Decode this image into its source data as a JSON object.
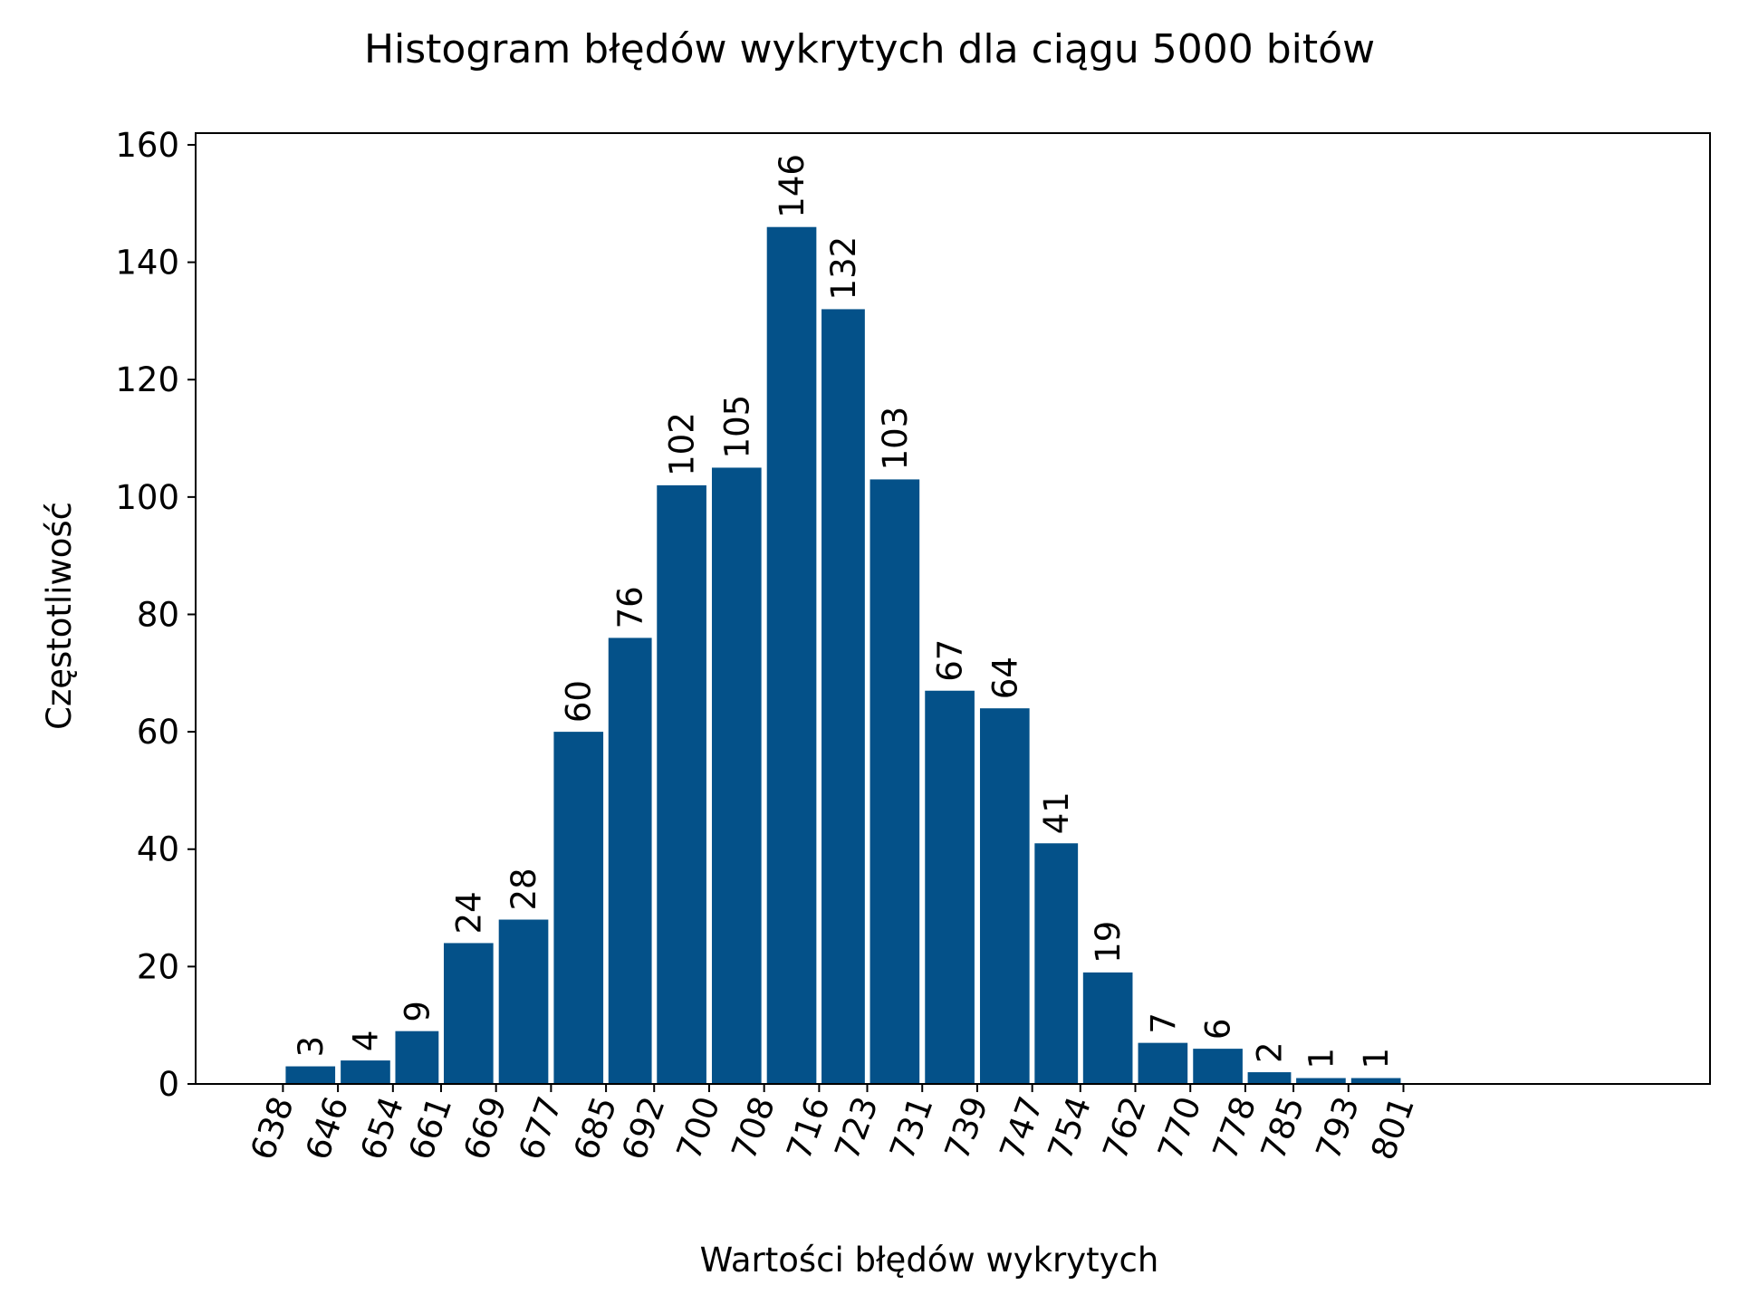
{
  "chart_data": {
    "type": "bar",
    "title": "Histogram błędów wykrytych dla ciągu 5000 bitów",
    "xlabel": "Wartości błędów wykrytych",
    "ylabel": "Częstotliwość",
    "bin_edges": [
      638,
      646,
      654,
      661,
      669,
      677,
      685,
      692,
      700,
      708,
      716,
      723,
      731,
      739,
      747,
      754,
      762,
      770,
      778,
      785,
      793,
      801
    ],
    "x_tick_labels": [
      "638",
      "646",
      "654",
      "661",
      "669",
      "677",
      "685",
      "692",
      "700",
      "708",
      "716",
      "723",
      "731",
      "739",
      "747",
      "754",
      "762",
      "770",
      "778",
      "785",
      "793",
      "801"
    ],
    "values": [
      3,
      4,
      9,
      24,
      28,
      60,
      76,
      102,
      105,
      146,
      132,
      103,
      67,
      64,
      41,
      19,
      7,
      6,
      2,
      1,
      1
    ],
    "ylim": [
      0,
      162
    ],
    "y_ticks": [
      0,
      20,
      40,
      60,
      80,
      100,
      120,
      140,
      160
    ],
    "y_tick_labels": [
      "0",
      "20",
      "40",
      "60",
      "80",
      "100",
      "120",
      "140",
      "160"
    ],
    "bar_color": "#045189",
    "grid": false,
    "data_labels": true,
    "x_tick_rotation_deg": 70
  }
}
